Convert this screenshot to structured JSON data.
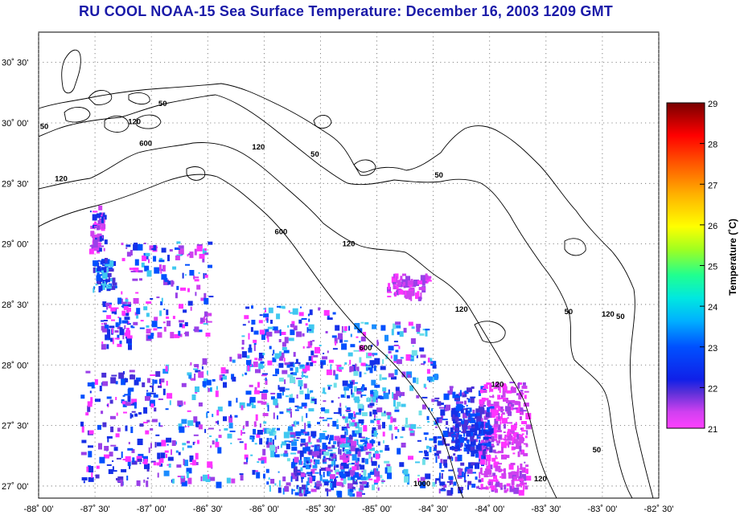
{
  "title": "RU COOL  NOAA-15  Sea Surface Temperature:  December 16, 2003 1209 GMT",
  "map": {
    "lon_range": [
      -88.0,
      -82.5
    ],
    "lat_range": [
      26.9,
      30.75
    ],
    "lon_ticks": [
      {
        "value": -88.0,
        "label": "-88˚ 00'"
      },
      {
        "value": -87.5,
        "label": "-87˚ 30'"
      },
      {
        "value": -87.0,
        "label": "-87˚ 00'"
      },
      {
        "value": -86.5,
        "label": "-86˚ 30'"
      },
      {
        "value": -86.0,
        "label": "-86˚ 00'"
      },
      {
        "value": -85.5,
        "label": "-85˚ 30'"
      },
      {
        "value": -85.0,
        "label": "-85˚ 00'"
      },
      {
        "value": -84.5,
        "label": "-84˚ 30'"
      },
      {
        "value": -84.0,
        "label": "-84˚ 00'"
      },
      {
        "value": -83.5,
        "label": "-83˚ 30'"
      },
      {
        "value": -83.0,
        "label": "-83˚ 00'"
      },
      {
        "value": -82.5,
        "label": "-82˚ 30'"
      }
    ],
    "lat_ticks": [
      {
        "value": 27.0,
        "label": "27˚ 00'"
      },
      {
        "value": 27.5,
        "label": "27˚ 30'"
      },
      {
        "value": 28.0,
        "label": "28˚ 00'"
      },
      {
        "value": 28.5,
        "label": "28˚ 30'"
      },
      {
        "value": 29.0,
        "label": "29˚ 00'"
      },
      {
        "value": 29.5,
        "label": "29˚ 30'"
      },
      {
        "value": 30.0,
        "label": "30˚ 00'"
      },
      {
        "value": 30.5,
        "label": "30˚ 30'"
      }
    ],
    "grid": "dotted",
    "contour_labels": [
      {
        "text": "50",
        "lon": -86.9,
        "lat": 30.14
      },
      {
        "text": "120",
        "lon": -87.15,
        "lat": 29.99
      },
      {
        "text": "50",
        "lon": -87.95,
        "lat": 29.95
      },
      {
        "text": "600",
        "lon": -87.05,
        "lat": 29.81
      },
      {
        "text": "120",
        "lon": -86.05,
        "lat": 29.78
      },
      {
        "text": "50",
        "lon": -85.55,
        "lat": 29.72
      },
      {
        "text": "120",
        "lon": -87.8,
        "lat": 29.52
      },
      {
        "text": "50",
        "lon": -84.45,
        "lat": 29.55
      },
      {
        "text": "600",
        "lon": -85.85,
        "lat": 29.08
      },
      {
        "text": "120",
        "lon": -85.25,
        "lat": 28.98
      },
      {
        "text": "120",
        "lon": -84.25,
        "lat": 28.44
      },
      {
        "text": "600",
        "lon": -85.1,
        "lat": 28.12
      },
      {
        "text": "50",
        "lon": -83.3,
        "lat": 28.42
      },
      {
        "text": "120",
        "lon": -82.95,
        "lat": 28.4
      },
      {
        "text": "50",
        "lon": -82.84,
        "lat": 28.38
      },
      {
        "text": "120",
        "lon": -83.93,
        "lat": 27.82
      },
      {
        "text": "50",
        "lon": -83.05,
        "lat": 27.28
      },
      {
        "text": "120",
        "lon": -83.55,
        "lat": 27.04
      },
      {
        "text": "1000",
        "lon": -84.6,
        "lat": 27.0
      }
    ]
  },
  "colorbar": {
    "label": "Temperature (˚C)",
    "min": 21,
    "max": 29,
    "ticks": [
      "21",
      "22",
      "23",
      "24",
      "25",
      "26",
      "27",
      "28",
      "29"
    ],
    "colors": [
      "#ff33ff",
      "#b040e0",
      "#3a2fd6",
      "#0040ff",
      "#00a8ff",
      "#00e8e8",
      "#20ff9a",
      "#9aff20",
      "#ffff00",
      "#ffb000",
      "#ff6000",
      "#ff0000",
      "#b00000",
      "#7a0000"
    ]
  }
}
